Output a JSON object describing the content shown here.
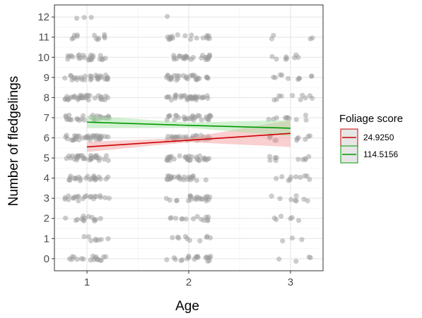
{
  "chart_data": {
    "type": "scatter",
    "title": "",
    "xlabel": "Age",
    "ylabel": "Number of fledgelings",
    "x_ticks": [
      "1",
      "2",
      "3"
    ],
    "y_ticks": [
      "0",
      "1",
      "2",
      "3",
      "4",
      "5",
      "6",
      "7",
      "8",
      "9",
      "10",
      "11",
      "12"
    ],
    "xlim": [
      0.68,
      3.32
    ],
    "ylim": [
      -0.6,
      12.6
    ],
    "grid": true,
    "legend": {
      "title": "Foliage score",
      "position": "right",
      "entries": [
        "24.9250",
        "114.5156"
      ]
    },
    "points": {
      "color": "#999999",
      "jitter_width": 0.22,
      "counts_per_age_and_value": {
        "1": [
          18,
          8,
          14,
          22,
          24,
          32,
          36,
          30,
          34,
          30,
          24,
          12,
          3
        ],
        "2": [
          20,
          10,
          14,
          22,
          24,
          30,
          34,
          30,
          34,
          30,
          26,
          18,
          1
        ],
        "3": [
          4,
          3,
          6,
          8,
          10,
          10,
          12,
          10,
          10,
          10,
          8,
          4,
          0
        ]
      }
    },
    "series": [
      {
        "name": "24.9250",
        "color": "#cc0000",
        "fill": "#f4a0a0",
        "x": [
          1,
          2,
          3
        ],
        "y": [
          5.55,
          5.88,
          6.22
        ],
        "ci_lower": [
          5.3,
          5.78,
          5.55
        ],
        "ci_upper": [
          5.8,
          6.0,
          6.88
        ]
      },
      {
        "name": "114.5156",
        "color": "#009900",
        "fill": "#a6e3a6",
        "x": [
          1,
          2,
          3
        ],
        "y": [
          6.78,
          6.62,
          6.48
        ],
        "ci_lower": [
          6.48,
          6.5,
          6.08
        ],
        "ci_upper": [
          7.1,
          6.76,
          6.88
        ]
      }
    ]
  }
}
